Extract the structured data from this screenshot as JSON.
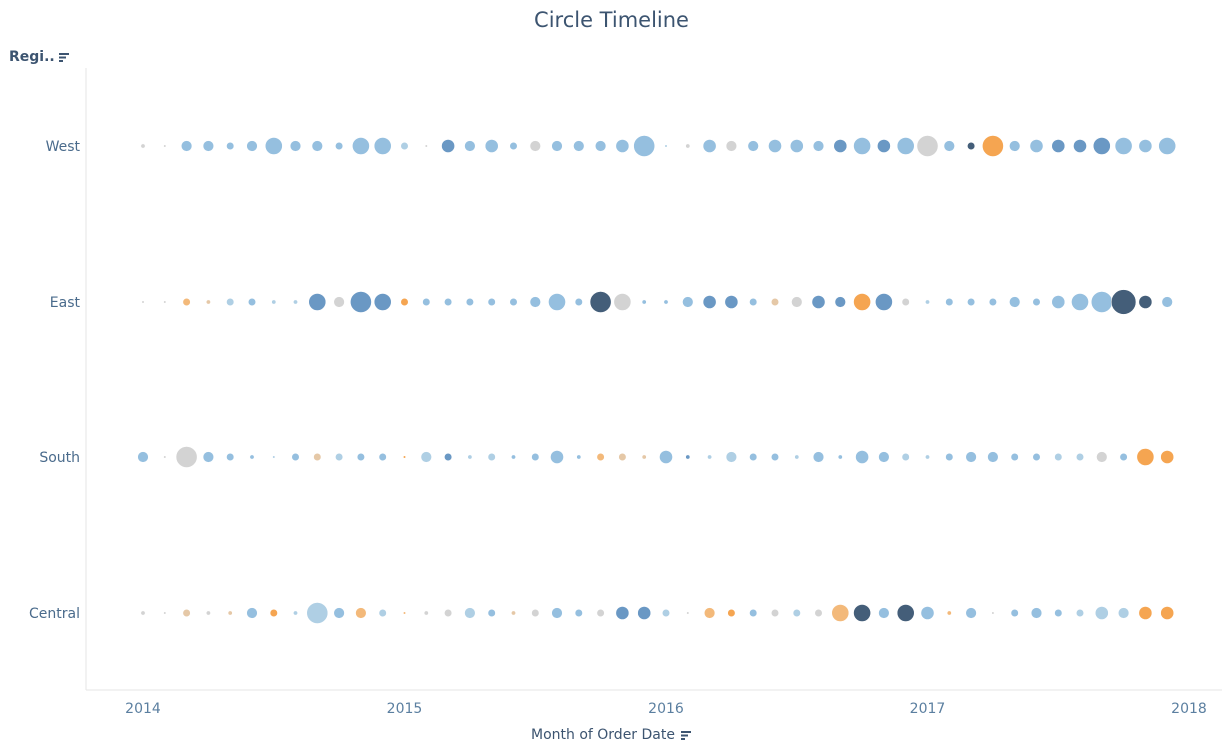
{
  "chart_data": {
    "type": "scatter",
    "title": "Circle Timeline",
    "row_header": "Regi..",
    "xlabel": "Month of Order Date",
    "x_ticks": [
      "2014",
      "2015",
      "2016",
      "2017",
      "2018"
    ],
    "xlim": [
      "2014-01",
      "2018-01"
    ],
    "y_categories": [
      "West",
      "East",
      "South",
      "Central"
    ],
    "x": [
      "2014-01",
      "2014-02",
      "2014-03",
      "2014-04",
      "2014-05",
      "2014-06",
      "2014-07",
      "2014-08",
      "2014-09",
      "2014-10",
      "2014-11",
      "2014-12",
      "2015-01",
      "2015-02",
      "2015-03",
      "2015-04",
      "2015-05",
      "2015-06",
      "2015-07",
      "2015-08",
      "2015-09",
      "2015-10",
      "2015-11",
      "2015-12",
      "2016-01",
      "2016-02",
      "2016-03",
      "2016-04",
      "2016-05",
      "2016-06",
      "2016-07",
      "2016-08",
      "2016-09",
      "2016-10",
      "2016-11",
      "2016-12",
      "2017-01",
      "2017-02",
      "2017-03",
      "2017-04",
      "2017-05",
      "2017-06",
      "2017-07",
      "2017-08",
      "2017-09",
      "2017-10",
      "2017-11",
      "2017-12"
    ],
    "encoding": {
      "size": "relative magnitude (1-10)",
      "color": "diverging value (-3 orange ... 0 grey ... +4 dark blue)"
    },
    "colors": {
      "-3": "#f49d42",
      "-2": "#f2b36f",
      "-1": "#e3c3a0",
      "0": "#cfcfcf",
      "1": "#a8cbe2",
      "2": "#8cbadc",
      "3": "#5d8fbf",
      "4": "#34506e"
    },
    "series": [
      {
        "name": "West",
        "size": [
          2,
          1,
          4,
          4,
          3,
          4,
          6,
          4,
          4,
          3,
          6,
          6,
          3,
          1,
          5,
          4,
          5,
          3,
          4,
          4,
          4,
          4,
          5,
          7,
          1,
          2,
          5,
          4,
          4,
          5,
          5,
          4,
          5,
          6,
          5,
          6,
          7,
          4,
          3,
          7,
          4,
          5,
          5,
          5,
          6,
          6,
          5,
          6
        ],
        "color": [
          0,
          0,
          2,
          2,
          2,
          2,
          2,
          2,
          2,
          2,
          2,
          2,
          1,
          0,
          3,
          2,
          2,
          2,
          0,
          2,
          2,
          2,
          2,
          2,
          1,
          0,
          2,
          0,
          2,
          2,
          2,
          2,
          3,
          2,
          3,
          2,
          0,
          2,
          4,
          -3,
          2,
          2,
          3,
          3,
          3,
          2,
          2,
          2
        ]
      },
      {
        "name": "East",
        "size": [
          1,
          1,
          3,
          2,
          3,
          3,
          2,
          2,
          6,
          4,
          7,
          6,
          3,
          3,
          3,
          3,
          3,
          3,
          4,
          6,
          3,
          7,
          6,
          2,
          2,
          4,
          5,
          5,
          3,
          3,
          4,
          5,
          4,
          6,
          6,
          3,
          2,
          3,
          3,
          3,
          4,
          3,
          5,
          6,
          7,
          8,
          5,
          4
        ],
        "color": [
          0,
          0,
          -2,
          -1,
          1,
          2,
          1,
          1,
          3,
          0,
          3,
          3,
          -3,
          2,
          2,
          2,
          2,
          2,
          2,
          2,
          2,
          4,
          0,
          2,
          2,
          2,
          3,
          3,
          2,
          -1,
          0,
          3,
          3,
          -3,
          3,
          0,
          1,
          2,
          2,
          2,
          2,
          2,
          2,
          2,
          2,
          4,
          4,
          2
        ]
      },
      {
        "name": "South",
        "size": [
          4,
          1,
          7,
          4,
          3,
          2,
          1,
          3,
          3,
          3,
          3,
          3,
          1,
          4,
          3,
          2,
          3,
          2,
          3,
          5,
          2,
          3,
          3,
          2,
          5,
          2,
          2,
          4,
          3,
          3,
          2,
          4,
          2,
          5,
          4,
          3,
          2,
          3,
          4,
          4,
          3,
          3,
          3,
          3,
          4,
          3,
          6,
          5
        ],
        "color": [
          2,
          0,
          0,
          2,
          2,
          2,
          1,
          2,
          -1,
          1,
          2,
          2,
          -3,
          1,
          3,
          1,
          1,
          2,
          2,
          2,
          2,
          -2,
          -1,
          -1,
          2,
          3,
          1,
          1,
          2,
          2,
          1,
          2,
          2,
          2,
          2,
          1,
          1,
          2,
          2,
          2,
          2,
          2,
          1,
          1,
          0,
          2,
          -3,
          -3
        ]
      },
      {
        "name": "Central",
        "size": [
          2,
          1,
          3,
          2,
          2,
          4,
          3,
          2,
          7,
          4,
          4,
          3,
          1,
          2,
          3,
          4,
          3,
          2,
          3,
          4,
          3,
          3,
          5,
          5,
          3,
          1,
          4,
          3,
          3,
          3,
          3,
          3,
          6,
          6,
          4,
          6,
          5,
          2,
          4,
          1,
          3,
          4,
          3,
          3,
          5,
          4,
          5,
          5
        ],
        "color": [
          0,
          0,
          -1,
          0,
          -1,
          2,
          -3,
          1,
          1,
          2,
          -2,
          1,
          -2,
          0,
          0,
          1,
          2,
          -1,
          0,
          2,
          2,
          0,
          3,
          3,
          1,
          0,
          -2,
          -3,
          2,
          0,
          1,
          0,
          -2,
          4,
          2,
          4,
          2,
          -2,
          2,
          0,
          2,
          2,
          2,
          1,
          1,
          1,
          -3,
          -3
        ]
      }
    ]
  }
}
